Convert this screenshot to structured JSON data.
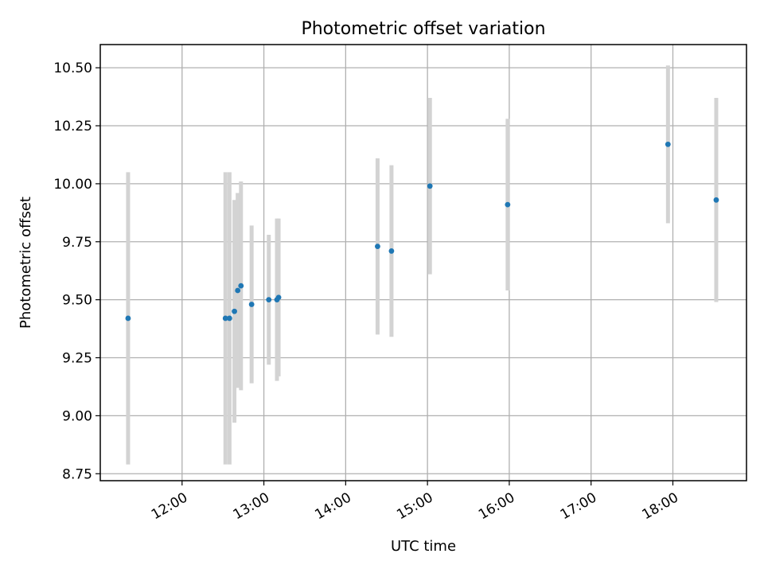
{
  "chart_data": {
    "type": "scatter",
    "title": "Photometric offset variation",
    "xlabel": "UTC time",
    "ylabel": "Photometric offset",
    "x_unit": "hours (UTC)",
    "xlim": [
      11.0,
      18.9
    ],
    "ylim": [
      8.72,
      10.6
    ],
    "x_ticks": [
      {
        "value": 12,
        "label": "12:00"
      },
      {
        "value": 13,
        "label": "13:00"
      },
      {
        "value": 14,
        "label": "14:00"
      },
      {
        "value": 15,
        "label": "15:00"
      },
      {
        "value": 16,
        "label": "16:00"
      },
      {
        "value": 17,
        "label": "17:00"
      },
      {
        "value": 18,
        "label": "18:00"
      }
    ],
    "y_ticks": [
      {
        "value": 8.75,
        "label": "8.75"
      },
      {
        "value": 9.0,
        "label": "9.00"
      },
      {
        "value": 9.25,
        "label": "9.25"
      },
      {
        "value": 9.5,
        "label": "9.50"
      },
      {
        "value": 9.75,
        "label": "9.75"
      },
      {
        "value": 10.0,
        "label": "10.00"
      },
      {
        "value": 10.25,
        "label": "10.25"
      },
      {
        "value": 10.5,
        "label": "10.50"
      }
    ],
    "grid": true,
    "marker_color": "#1f77b4",
    "errorbar_color": "#d3d3d3",
    "points": [
      {
        "x": 11.34,
        "y": 9.42,
        "err": 0.63
      },
      {
        "x": 12.53,
        "y": 9.42,
        "err": 0.63
      },
      {
        "x": 12.58,
        "y": 9.42,
        "err": 0.63
      },
      {
        "x": 12.64,
        "y": 9.45,
        "err": 0.48
      },
      {
        "x": 12.68,
        "y": 9.54,
        "err": 0.42
      },
      {
        "x": 12.72,
        "y": 9.56,
        "err": 0.45
      },
      {
        "x": 12.85,
        "y": 9.48,
        "err": 0.34
      },
      {
        "x": 13.06,
        "y": 9.5,
        "err": 0.28
      },
      {
        "x": 13.16,
        "y": 9.5,
        "err": 0.35
      },
      {
        "x": 13.18,
        "y": 9.51,
        "err": 0.34
      },
      {
        "x": 14.39,
        "y": 9.73,
        "err": 0.38
      },
      {
        "x": 14.56,
        "y": 9.71,
        "err": 0.37
      },
      {
        "x": 15.03,
        "y": 9.99,
        "err": 0.38
      },
      {
        "x": 15.98,
        "y": 9.91,
        "err": 0.37
      },
      {
        "x": 17.94,
        "y": 10.17,
        "err": 0.34
      },
      {
        "x": 18.53,
        "y": 9.93,
        "err": 0.44
      }
    ]
  }
}
